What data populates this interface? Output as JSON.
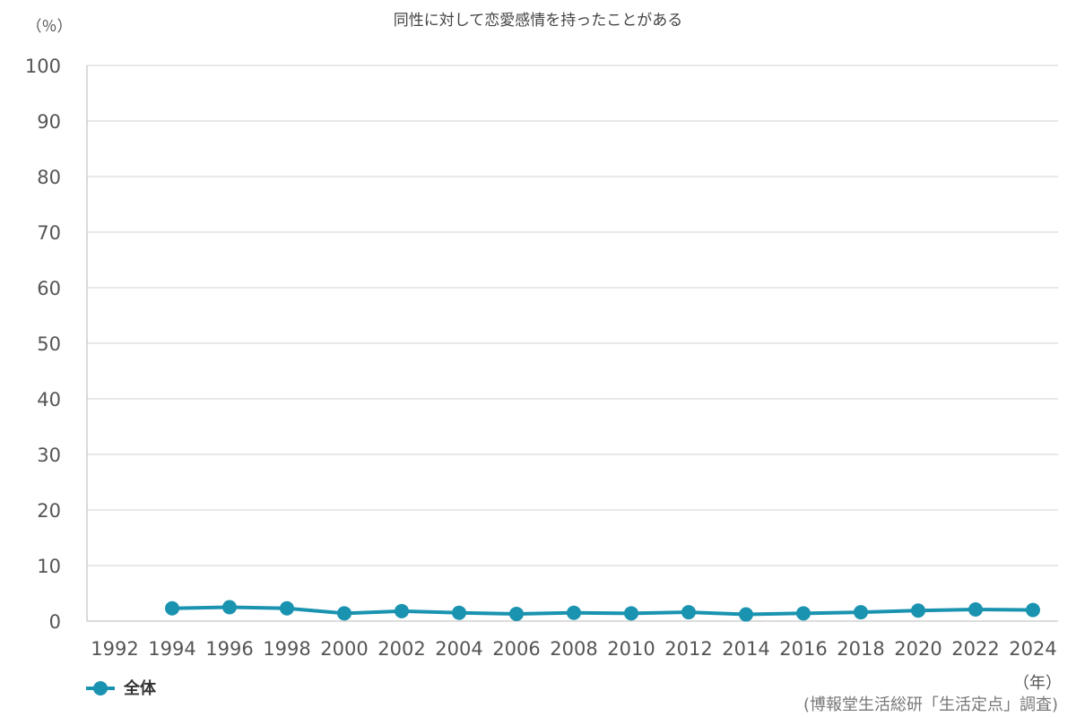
{
  "chart_data": {
    "type": "line",
    "title": "同性に対して恋愛感情を持ったことがある",
    "y_unit": "（％）",
    "x_unit": "（年）",
    "source": "(博報堂生活総研「生活定点」調査)",
    "ylim": [
      0,
      100
    ],
    "yticks": [
      0,
      10,
      20,
      30,
      40,
      50,
      60,
      70,
      80,
      90,
      100
    ],
    "categories": [
      "1992",
      "1994",
      "1996",
      "1998",
      "2000",
      "2002",
      "2004",
      "2006",
      "2008",
      "2010",
      "2012",
      "2014",
      "2016",
      "2018",
      "2020",
      "2022",
      "2024"
    ],
    "grid": true,
    "legend_position": "bottom-left",
    "series": [
      {
        "name": "全体",
        "color": "#1a93b0",
        "values": [
          null,
          2.3,
          2.5,
          2.3,
          1.4,
          1.8,
          1.5,
          1.3,
          1.5,
          1.4,
          1.6,
          1.2,
          1.4,
          1.6,
          1.9,
          2.1,
          2.0
        ]
      }
    ]
  }
}
